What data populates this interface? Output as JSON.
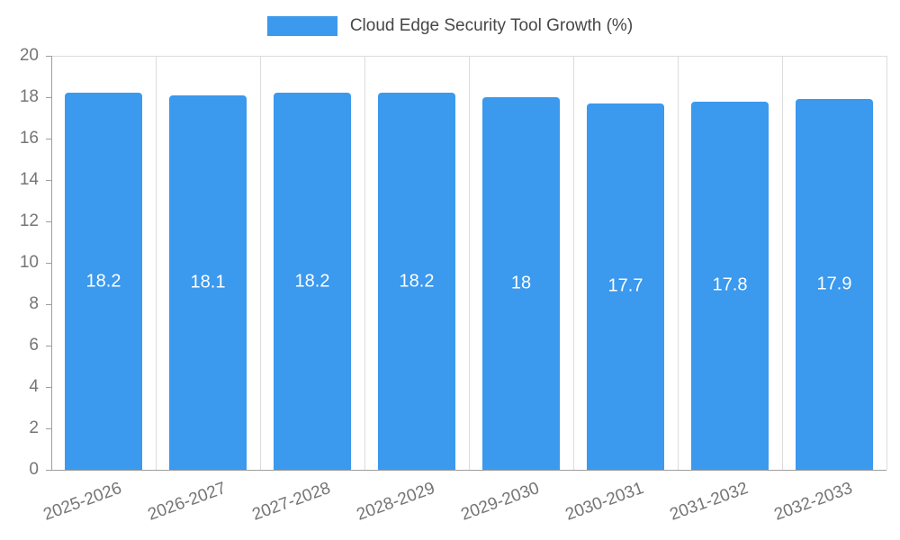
{
  "chart_data": {
    "type": "bar",
    "title": "Cloud Edge Security Tool Growth (%)",
    "categories": [
      "2025-2026",
      "2026-2027",
      "2027-2028",
      "2028-2029",
      "2029-2030",
      "2030-2031",
      "2031-2032",
      "2032-2033"
    ],
    "values": [
      18.2,
      18.1,
      18.2,
      18.2,
      18,
      17.7,
      17.8,
      17.9
    ],
    "value_labels": [
      "18.2",
      "18.1",
      "18.2",
      "18.2",
      "18",
      "17.7",
      "17.8",
      "17.9"
    ],
    "ylabel": "",
    "xlabel": "",
    "ylim": [
      0,
      20
    ],
    "ytick_step": 2,
    "legend_position": "top",
    "grid": "vertical",
    "bar_color": "#3b99ee",
    "value_label_color": "#ffffff",
    "tick_label_color": "#757575",
    "axis_color": "#9e9e9e",
    "grid_color": "#dcdcdc"
  }
}
